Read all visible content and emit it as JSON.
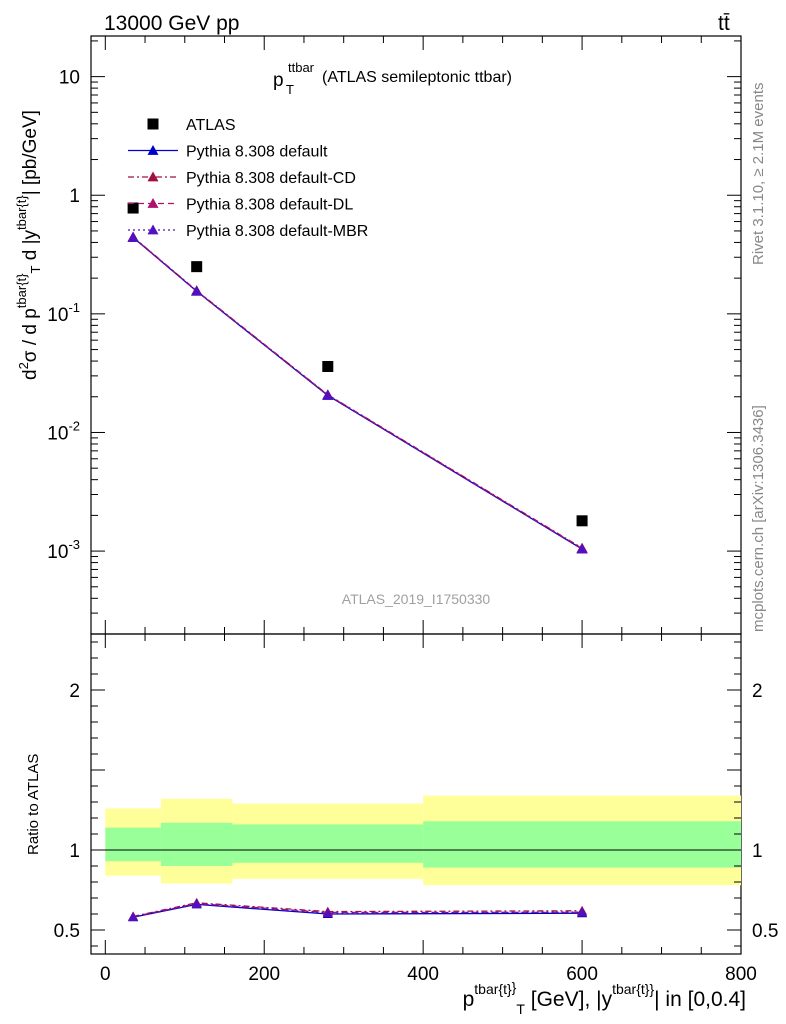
{
  "header": {
    "left": "13000 GeV pp",
    "right": "tt̄"
  },
  "plot_title": {
    "main": "p",
    "sub": "T",
    "sup": "ttbar",
    "rest": " (ATLAS semileptonic ttbar)"
  },
  "watermark": "ATLAS_2019_I1750330",
  "side_labels": {
    "rivet": "Rivet 3.1.10, ≥ 2.1M events",
    "mcplots": "mcplots.cern.ch [arXiv:1306.3436]"
  },
  "ratio_ylabel": "Ratio to ATLAS",
  "colors": {
    "data": "#000000",
    "default": "#0000cc",
    "cd": "#a01040",
    "dl": "#b0106a",
    "mbr": "#5010c0",
    "band_inner": "#99ff99",
    "band_outer": "#ffff99"
  },
  "chart_data": [
    {
      "type": "scatter",
      "panel": "main",
      "yscale": "log",
      "ylim": [
        0.0002,
        22
      ],
      "xlim": [
        -18,
        800
      ],
      "ylabel": "d²σ / d p^{tbar{t}}_T d |y^{tbar{t}}| [pb/GeV]",
      "yticks": [
        "10^{-3}",
        "10^{-2}",
        "10^{-1}",
        "1",
        "10"
      ],
      "legend_placement": "top-left",
      "x": [
        35,
        115,
        280,
        600
      ],
      "series": [
        {
          "name": "ATLAS",
          "marker": "square",
          "values": [
            0.78,
            0.25,
            0.036,
            0.0018
          ]
        },
        {
          "name": "Pythia 8.308 default",
          "marker": "triangle",
          "line": "solid",
          "values": [
            0.44,
            0.155,
            0.0205,
            0.00104
          ]
        },
        {
          "name": "Pythia 8.308 default-CD",
          "marker": "triangle",
          "line": "dashdot",
          "values": [
            0.445,
            0.157,
            0.0208,
            0.00106
          ]
        },
        {
          "name": "Pythia 8.308 default-DL",
          "marker": "triangle",
          "line": "dashed",
          "values": [
            0.443,
            0.156,
            0.0207,
            0.00105
          ]
        },
        {
          "name": "Pythia 8.308 default-MBR",
          "marker": "triangle",
          "line": "dotted",
          "values": [
            0.442,
            0.155,
            0.0206,
            0.00104
          ]
        }
      ]
    },
    {
      "type": "line",
      "panel": "ratio",
      "ylim": [
        0.35,
        2.35
      ],
      "xlim": [
        -18,
        800
      ],
      "ylabel": "Ratio to ATLAS",
      "xlabel": "p^{tbar{t}}_T [GeV], |y^{tbar{t}}| in [0,0.4]",
      "xticks": [
        "0",
        "200",
        "400",
        "600",
        "800"
      ],
      "yticks": [
        "0.5",
        "1",
        "2"
      ],
      "bands": [
        {
          "xlo": 0,
          "xhi": 70,
          "inner": [
            0.93,
            1.14
          ],
          "outer": [
            0.84,
            1.26
          ]
        },
        {
          "xlo": 70,
          "xhi": 160,
          "inner": [
            0.9,
            1.17
          ],
          "outer": [
            0.79,
            1.32
          ]
        },
        {
          "xlo": 160,
          "xhi": 400,
          "inner": [
            0.92,
            1.16
          ],
          "outer": [
            0.82,
            1.29
          ]
        },
        {
          "xlo": 400,
          "xhi": 800,
          "inner": [
            0.89,
            1.18
          ],
          "outer": [
            0.78,
            1.34
          ]
        }
      ],
      "x": [
        35,
        115,
        280,
        600
      ],
      "series": [
        {
          "name": "Pythia 8.308 default",
          "values": [
            0.58,
            0.66,
            0.6,
            0.605
          ]
        },
        {
          "name": "Pythia 8.308 default-CD",
          "values": [
            0.585,
            0.67,
            0.615,
            0.62
          ]
        },
        {
          "name": "Pythia 8.308 default-DL",
          "values": [
            0.583,
            0.665,
            0.61,
            0.61
          ]
        },
        {
          "name": "Pythia 8.308 default-MBR",
          "values": [
            0.582,
            0.663,
            0.605,
            0.612
          ]
        }
      ]
    }
  ]
}
